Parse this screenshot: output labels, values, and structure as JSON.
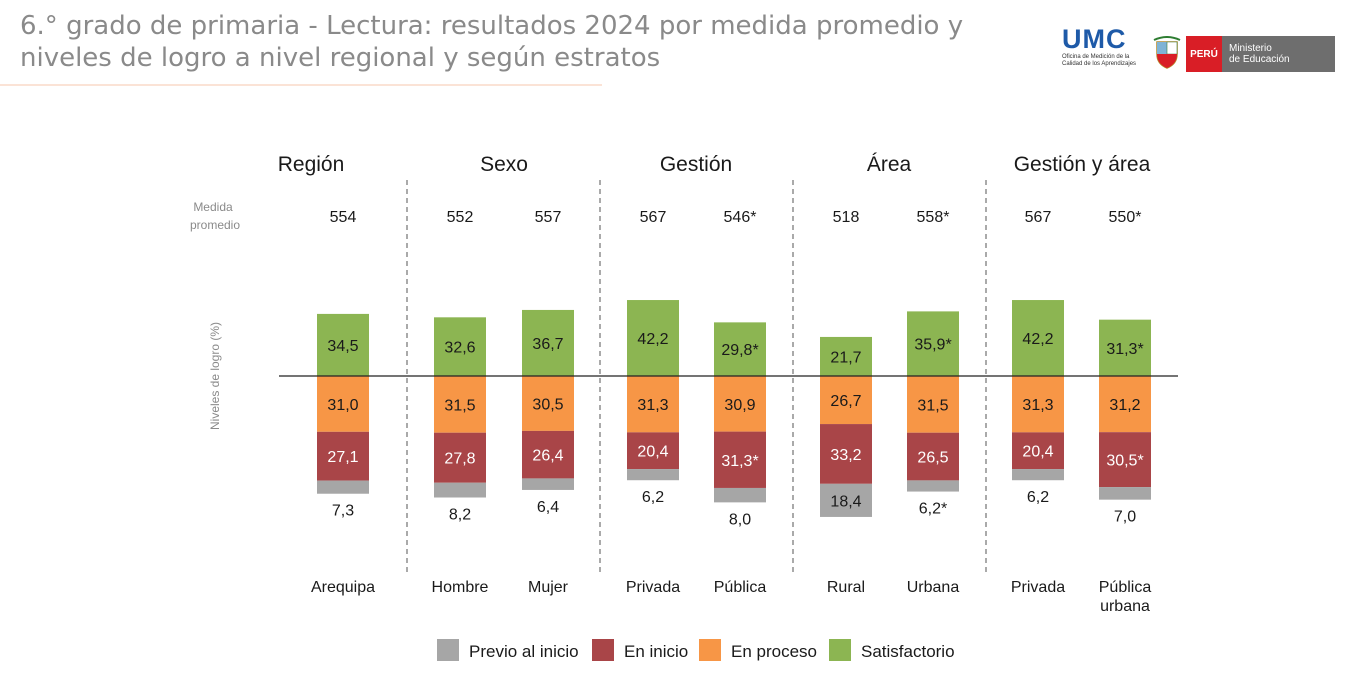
{
  "header": {
    "title": "6.° grado de primaria - Lectura: resultados 2024 por medida promedio y niveles de logro a nivel regional y según estratos",
    "logo_umc": {
      "word": "UMC",
      "lines": [
        "Oficina de Medición de la",
        "Calidad de los Aprendizajes"
      ]
    },
    "logo_peru": {
      "label": "PERÚ",
      "ministry": [
        "Ministerio",
        "de Educación"
      ]
    }
  },
  "chart_data": {
    "type": "bar",
    "stacking": "diverging",
    "group_headers": [
      "Región",
      "Sexo",
      "Gestión",
      "Área",
      "Gestión y área"
    ],
    "medida_label": [
      "Medida",
      "promedio"
    ],
    "ylabel": "Niveles de logro (%)",
    "legend": [
      {
        "name": "Previo al inicio",
        "color": "#a6a6a6"
      },
      {
        "name": "En inicio",
        "color": "#a94548"
      },
      {
        "name": "En proceso",
        "color": "#f79646"
      },
      {
        "name": "Satisfactorio",
        "color": "#8cb552"
      }
    ],
    "categories": [
      {
        "group": "Región",
        "label": [
          "Arequipa"
        ],
        "medida": "554",
        "satisfactorio": 34.5,
        "satisfactorio_label": "34,5",
        "en_proceso": 31.0,
        "en_proceso_label": "31,0",
        "en_inicio": 27.1,
        "en_inicio_label": "27,1",
        "previo": 7.3,
        "previo_label": "7,3"
      },
      {
        "group": "Sexo",
        "label": [
          "Hombre"
        ],
        "medida": "552",
        "satisfactorio": 32.6,
        "satisfactorio_label": "32,6",
        "en_proceso": 31.5,
        "en_proceso_label": "31,5",
        "en_inicio": 27.8,
        "en_inicio_label": "27,8",
        "previo": 8.2,
        "previo_label": "8,2"
      },
      {
        "group": "Sexo",
        "label": [
          "Mujer"
        ],
        "medida": "557",
        "satisfactorio": 36.7,
        "satisfactorio_label": "36,7",
        "en_proceso": 30.5,
        "en_proceso_label": "30,5",
        "en_inicio": 26.4,
        "en_inicio_label": "26,4",
        "previo": 6.4,
        "previo_label": "6,4"
      },
      {
        "group": "Gestión",
        "label": [
          "Privada"
        ],
        "medida": "567",
        "satisfactorio": 42.2,
        "satisfactorio_label": "42,2",
        "en_proceso": 31.3,
        "en_proceso_label": "31,3",
        "en_inicio": 20.4,
        "en_inicio_label": "20,4",
        "previo": 6.2,
        "previo_label": "6,2"
      },
      {
        "group": "Gestión",
        "label": [
          "Pública"
        ],
        "medida": "546*",
        "satisfactorio": 29.8,
        "satisfactorio_label": "29,8*",
        "en_proceso": 30.9,
        "en_proceso_label": "30,9",
        "en_inicio": 31.3,
        "en_inicio_label": "31,3*",
        "previo": 8.0,
        "previo_label": "8,0"
      },
      {
        "group": "Área",
        "label": [
          "Rural"
        ],
        "medida": "518",
        "satisfactorio": 21.7,
        "satisfactorio_label": "21,7",
        "en_proceso": 26.7,
        "en_proceso_label": "26,7",
        "en_inicio": 33.2,
        "en_inicio_label": "33,2",
        "previo": 18.4,
        "previo_label": "18,4"
      },
      {
        "group": "Área",
        "label": [
          "Urbana"
        ],
        "medida": "558*",
        "satisfactorio": 35.9,
        "satisfactorio_label": "35,9*",
        "en_proceso": 31.5,
        "en_proceso_label": "31,5",
        "en_inicio": 26.5,
        "en_inicio_label": "26,5",
        "previo": 6.2,
        "previo_label": "6,2*"
      },
      {
        "group": "Gestión y área",
        "label": [
          "Privada"
        ],
        "medida": "567",
        "satisfactorio": 42.2,
        "satisfactorio_label": "42,2",
        "en_proceso": 31.3,
        "en_proceso_label": "31,3",
        "en_inicio": 20.4,
        "en_inicio_label": "20,4",
        "previo": 6.2,
        "previo_label": "6,2"
      },
      {
        "group": "Gestión y área",
        "label": [
          "Pública",
          "urbana"
        ],
        "medida": "550*",
        "satisfactorio": 31.3,
        "satisfactorio_label": "31,3*",
        "en_proceso": 31.2,
        "en_proceso_label": "31,2",
        "en_inicio": 30.5,
        "en_inicio_label": "30,5*",
        "previo": 7.0,
        "previo_label": "7,0"
      }
    ]
  }
}
